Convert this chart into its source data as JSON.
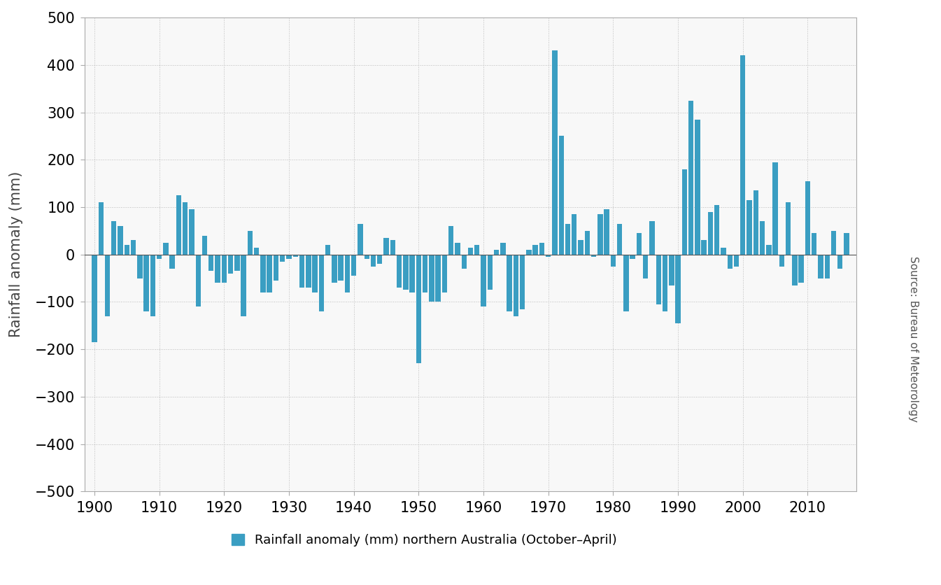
{
  "years": [
    1900,
    1901,
    1902,
    1903,
    1904,
    1905,
    1906,
    1907,
    1908,
    1909,
    1910,
    1911,
    1912,
    1913,
    1914,
    1915,
    1916,
    1917,
    1918,
    1919,
    1920,
    1921,
    1922,
    1923,
    1924,
    1925,
    1926,
    1927,
    1928,
    1929,
    1930,
    1931,
    1932,
    1933,
    1934,
    1935,
    1936,
    1937,
    1938,
    1939,
    1940,
    1941,
    1942,
    1943,
    1944,
    1945,
    1946,
    1947,
    1948,
    1949,
    1950,
    1951,
    1952,
    1953,
    1954,
    1955,
    1956,
    1957,
    1958,
    1959,
    1960,
    1961,
    1962,
    1963,
    1964,
    1965,
    1966,
    1967,
    1968,
    1969,
    1970,
    1971,
    1972,
    1973,
    1974,
    1975,
    1976,
    1977,
    1978,
    1979,
    1980,
    1981,
    1982,
    1983,
    1984,
    1985,
    1986,
    1987,
    1988,
    1989,
    1990,
    1991,
    1992,
    1993,
    1994,
    1995,
    1996,
    1997,
    1998,
    1999,
    2000,
    2001,
    2002,
    2003,
    2004,
    2005,
    2006,
    2007,
    2008,
    2009,
    2010,
    2011,
    2012,
    2013,
    2014,
    2015,
    2016
  ],
  "values": [
    -185,
    110,
    -130,
    70,
    60,
    20,
    30,
    -50,
    -120,
    -130,
    -10,
    25,
    -30,
    125,
    110,
    95,
    -110,
    40,
    -35,
    -60,
    -60,
    -40,
    -35,
    -130,
    50,
    15,
    -80,
    -80,
    -55,
    -15,
    -10,
    -5,
    -70,
    -70,
    -80,
    -120,
    20,
    -60,
    -55,
    -80,
    -45,
    65,
    -10,
    -25,
    -20,
    35,
    30,
    -70,
    -75,
    -80,
    -230,
    -80,
    -100,
    -100,
    -80,
    60,
    25,
    -30,
    15,
    20,
    -110,
    -75,
    10,
    25,
    -120,
    -130,
    -115,
    10,
    20,
    25,
    -5,
    430,
    250,
    65,
    85,
    30,
    50,
    -5,
    85,
    95,
    -25,
    65,
    -120,
    -10,
    45,
    -50,
    70,
    -105,
    -120,
    -65,
    -145,
    180,
    325,
    285,
    30,
    90,
    105,
    15,
    -30,
    -25,
    420,
    115,
    135,
    70,
    20,
    195,
    -25,
    110,
    -65,
    -60,
    155,
    45,
    -50,
    -50,
    50,
    -30,
    45
  ],
  "bar_color": "#3A9EC2",
  "ylabel": "Rainfall anomaly (mm)",
  "ylim": [
    -500,
    500
  ],
  "yticks": [
    -500,
    -400,
    -300,
    -200,
    -100,
    0,
    100,
    200,
    300,
    400,
    500
  ],
  "xlim": [
    1898.5,
    2017.5
  ],
  "xticks": [
    1900,
    1910,
    1920,
    1930,
    1940,
    1950,
    1960,
    1970,
    1980,
    1990,
    2000,
    2010
  ],
  "legend_label": "Rainfall anomaly (mm) northern Australia (October–April)",
  "source_text": "Source: Bureau of Meteorology",
  "grid_color": "#BBBBBB",
  "bar_width": 0.8,
  "ylabel_fontsize": 15,
  "tick_fontsize": 15,
  "legend_fontsize": 13,
  "source_fontsize": 11,
  "plot_bgcolor": "#F8F8F8"
}
